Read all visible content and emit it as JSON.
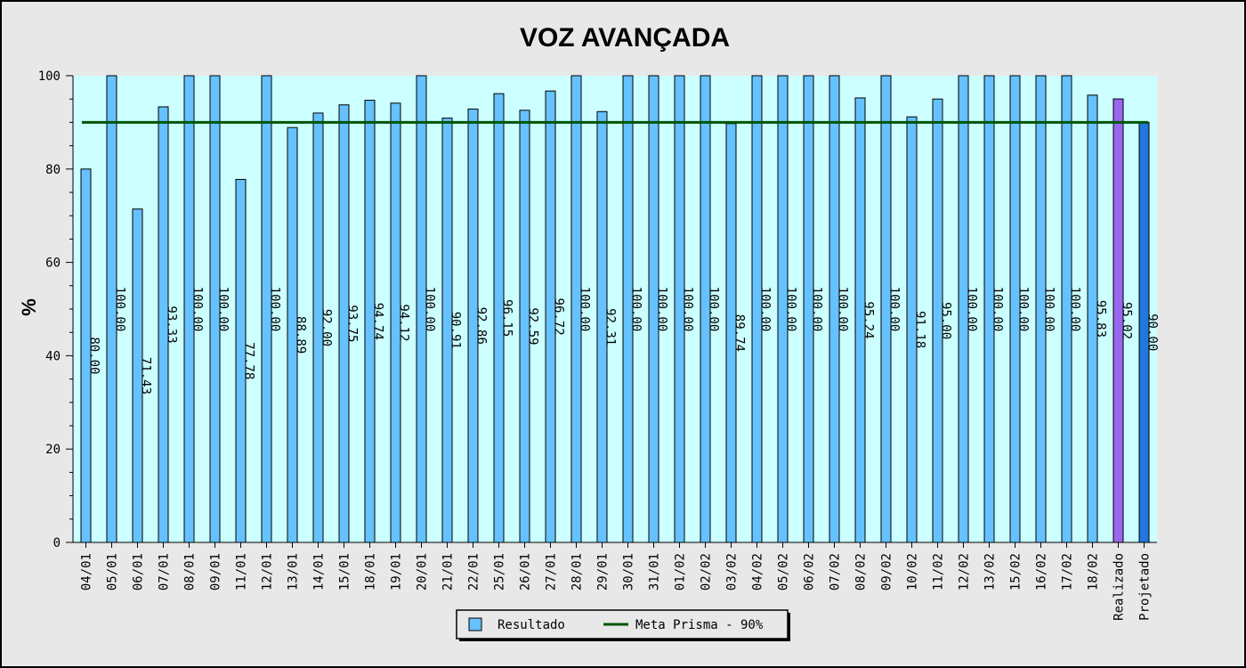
{
  "chart_data": {
    "type": "bar",
    "title": "VOZ AVANÇADA",
    "ylabel": "%",
    "ylim": [
      0,
      100
    ],
    "yticks": [
      "0",
      "20",
      "40",
      "60",
      "80",
      "100"
    ],
    "grid": false,
    "legend_position": "bottom",
    "categories": [
      "04/01",
      "05/01",
      "06/01",
      "07/01",
      "08/01",
      "09/01",
      "11/01",
      "12/01",
      "13/01",
      "14/01",
      "15/01",
      "18/01",
      "19/01",
      "20/01",
      "21/01",
      "22/01",
      "25/01",
      "26/01",
      "27/01",
      "28/01",
      "29/01",
      "30/01",
      "31/01",
      "01/02",
      "02/02",
      "03/02",
      "04/02",
      "05/02",
      "06/02",
      "07/02",
      "08/02",
      "09/02",
      "10/02",
      "11/02",
      "12/02",
      "13/02",
      "15/02",
      "16/02",
      "17/02",
      "18/02",
      "Realizado",
      "Projetado"
    ],
    "values": [
      80.0,
      100.0,
      71.43,
      93.33,
      100.0,
      100.0,
      77.78,
      100.0,
      88.89,
      92.0,
      93.75,
      94.74,
      94.12,
      100.0,
      90.91,
      92.86,
      96.15,
      92.59,
      96.72,
      100.0,
      92.31,
      100.0,
      100.0,
      100.0,
      100.0,
      89.74,
      100.0,
      100.0,
      100.0,
      100.0,
      95.24,
      100.0,
      91.18,
      95.0,
      100.0,
      100.0,
      100.0,
      100.0,
      100.0,
      95.83,
      95.02,
      90.0
    ],
    "value_labels": [
      "80.00",
      "100.00",
      "71.43",
      "93.33",
      "100.00",
      "100.00",
      "77.78",
      "100.00",
      "88.89",
      "92.00",
      "93.75",
      "94.74",
      "94.12",
      "100.00",
      "90.91",
      "92.86",
      "96.15",
      "92.59",
      "96.72",
      "100.00",
      "92.31",
      "100.00",
      "100.00",
      "100.00",
      "100.00",
      "89.74",
      "100.00",
      "100.00",
      "100.00",
      "100.00",
      "95.24",
      "100.00",
      "91.18",
      "95.00",
      "100.00",
      "100.00",
      "100.00",
      "100.00",
      "100.00",
      "95.83",
      "95.02",
      "90.00"
    ],
    "bar_colors": {
      "default": "#66c2ff",
      "Realizado": "#9966ee",
      "Projetado": "#2277dd"
    },
    "target_line": {
      "name": "Meta Prisma - 90%",
      "value": 90,
      "color": "#005500"
    },
    "series": [
      {
        "name": "Resultado",
        "color": "#66c2ff"
      }
    ],
    "plot_background": "#ccffff"
  }
}
